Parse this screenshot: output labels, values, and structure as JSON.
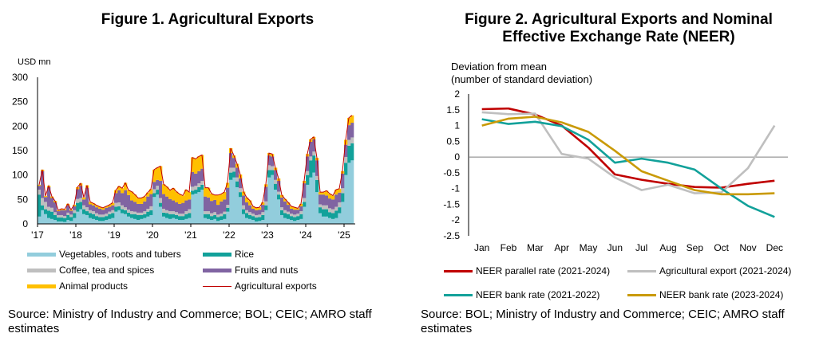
{
  "figure1": {
    "title": "Figure 1. Agricultural Exports",
    "unit_label": "USD mn",
    "source": "Source: Ministry of Industry and Commerce; BOL; CEIC; AMRO staff estimates",
    "legend": [
      {
        "label": "Vegetables, roots and tubers",
        "color": "#92cddc",
        "kind": "area"
      },
      {
        "label": "Rice",
        "color": "#12a19a",
        "kind": "area"
      },
      {
        "label": "Coffee, tea and spices",
        "color": "#bfbfbf",
        "kind": "area"
      },
      {
        "label": "Fruits and nuts",
        "color": "#8064a2",
        "kind": "area"
      },
      {
        "label": "Animal products",
        "color": "#ffc000",
        "kind": "area"
      },
      {
        "label": "Agricultural exports",
        "color": "#c00000",
        "kind": "line"
      }
    ]
  },
  "figure2": {
    "title_line1": "Figure 2. Agricultural Exports and Nominal",
    "title_line2": "Effective Exchange Rate (NEER)",
    "ylabel_line1": "Deviation from mean",
    "ylabel_line2": "(number of standard deviation)",
    "source": "Source: BOL; Ministry of Industry and Commerce; CEIC; AMRO staff estimates"
  },
  "chart_data": [
    {
      "type": "area",
      "stacked": true,
      "title": "Figure 1. Agricultural Exports",
      "ylabel": "USD mn",
      "xlabel": "",
      "ylim": [
        0,
        300
      ],
      "yticks": [
        0,
        50,
        100,
        150,
        200,
        250,
        300
      ],
      "xtick_labels": [
        "'17",
        "'18",
        "'19",
        "'20",
        "'21",
        "'22",
        "'23",
        "'24",
        "'25"
      ],
      "x_start": "2017-01",
      "frequency": "monthly",
      "grid": false,
      "legend_position": "bottom",
      "series": [
        {
          "name": "Vegetables, roots and tubers",
          "color": "#92cddc",
          "values": [
            15,
            28,
            20,
            12,
            10,
            8,
            5,
            5,
            4,
            8,
            6,
            12,
            25,
            30,
            20,
            18,
            12,
            10,
            8,
            6,
            6,
            8,
            10,
            12,
            25,
            28,
            22,
            20,
            15,
            12,
            10,
            8,
            10,
            12,
            15,
            18,
            55,
            60,
            35,
            15,
            12,
            10,
            12,
            10,
            8,
            8,
            10,
            12,
            60,
            62,
            65,
            70,
            12,
            10,
            8,
            10,
            6,
            8,
            10,
            25,
            90,
            95,
            75,
            55,
            20,
            12,
            10,
            8,
            5,
            6,
            8,
            28,
            95,
            100,
            70,
            50,
            18,
            12,
            10,
            8,
            6,
            8,
            10,
            35,
            80,
            95,
            105,
            65,
            22,
            15,
            15,
            12,
            10,
            12,
            22,
            45,
            100,
            125,
            130
          ]
        },
        {
          "name": "Rice",
          "color": "#12a19a",
          "values": [
            45,
            10,
            10,
            15,
            15,
            10,
            8,
            8,
            8,
            10,
            8,
            10,
            18,
            15,
            10,
            8,
            10,
            10,
            8,
            8,
            8,
            8,
            10,
            10,
            10,
            8,
            8,
            8,
            8,
            8,
            10,
            10,
            8,
            8,
            10,
            10,
            8,
            10,
            8,
            8,
            10,
            10,
            8,
            8,
            8,
            8,
            10,
            10,
            8,
            8,
            10,
            10,
            8,
            10,
            8,
            8,
            8,
            8,
            10,
            8,
            15,
            12,
            12,
            10,
            10,
            10,
            8,
            8,
            8,
            8,
            10,
            10,
            15,
            10,
            12,
            10,
            10,
            10,
            10,
            8,
            8,
            8,
            10,
            10,
            20,
            35,
            35,
            25,
            12,
            15,
            15,
            12,
            12,
            15,
            12,
            18,
            25,
            35,
            35
          ]
        },
        {
          "name": "Coffee, tea and spices",
          "color": "#bfbfbf",
          "values": [
            10,
            15,
            15,
            8,
            8,
            6,
            5,
            5,
            4,
            5,
            5,
            6,
            8,
            8,
            8,
            8,
            6,
            6,
            6,
            5,
            5,
            5,
            5,
            6,
            8,
            8,
            8,
            6,
            6,
            6,
            5,
            5,
            5,
            6,
            6,
            8,
            8,
            8,
            10,
            8,
            6,
            6,
            6,
            6,
            5,
            5,
            6,
            8,
            8,
            8,
            8,
            8,
            6,
            6,
            6,
            6,
            5,
            5,
            5,
            6,
            10,
            8,
            8,
            8,
            8,
            6,
            6,
            5,
            5,
            5,
            6,
            8,
            10,
            8,
            8,
            6,
            6,
            6,
            5,
            5,
            5,
            5,
            6,
            8,
            8,
            8,
            8,
            8,
            6,
            8,
            8,
            8,
            8,
            8,
            10,
            10,
            12,
            12,
            12
          ]
        },
        {
          "name": "Fruits and nuts",
          "color": "#8064a2",
          "values": [
            8,
            55,
            10,
            40,
            20,
            20,
            8,
            10,
            12,
            15,
            8,
            8,
            20,
            25,
            12,
            40,
            12,
            12,
            12,
            12,
            10,
            12,
            10,
            10,
            20,
            25,
            25,
            35,
            30,
            22,
            20,
            18,
            18,
            20,
            25,
            25,
            15,
            12,
            35,
            30,
            28,
            25,
            22,
            20,
            20,
            22,
            22,
            20,
            30,
            25,
            25,
            25,
            30,
            28,
            25,
            25,
            20,
            25,
            25,
            35,
            30,
            20,
            20,
            20,
            20,
            16,
            14,
            10,
            10,
            10,
            15,
            30,
            20,
            20,
            20,
            22,
            20,
            18,
            14,
            10,
            10,
            8,
            10,
            30,
            30,
            30,
            25,
            32,
            20,
            22,
            20,
            20,
            20,
            25,
            20,
            30,
            25,
            30,
            30
          ]
        },
        {
          "name": "Animal products",
          "color": "#ffc000",
          "values": [
            2,
            3,
            2,
            3,
            3,
            3,
            2,
            3,
            2,
            3,
            2,
            3,
            4,
            5,
            4,
            5,
            5,
            4,
            4,
            4,
            4,
            3,
            4,
            5,
            6,
            8,
            10,
            15,
            10,
            18,
            15,
            12,
            12,
            10,
            8,
            10,
            25,
            25,
            30,
            20,
            20,
            18,
            25,
            22,
            20,
            15,
            22,
            15,
            30,
            30,
            30,
            28,
            18,
            20,
            15,
            10,
            20,
            15,
            15,
            10,
            10,
            5,
            8,
            8,
            8,
            10,
            10,
            5,
            5,
            5,
            5,
            5,
            5,
            5,
            5,
            5,
            5,
            5,
            5,
            5,
            5,
            3,
            5,
            5,
            5,
            5,
            5,
            5,
            5,
            5,
            10,
            10,
            8,
            10,
            8,
            5,
            10,
            15,
            15
          ]
        }
      ],
      "line": {
        "name": "Agricultural exports",
        "color": "#c00000"
      }
    },
    {
      "type": "line",
      "title": "Figure 2. Agricultural Exports and Nominal Effective Exchange Rate (NEER)",
      "ylabel": "Deviation from mean (number of standard deviation)",
      "xlabel": "",
      "ylim": [
        -2.5,
        2
      ],
      "yticks": [
        -2.5,
        -2,
        -1.5,
        -1,
        -0.5,
        0,
        0.5,
        1,
        1.5,
        2
      ],
      "categories": [
        "Jan",
        "Feb",
        "Mar",
        "Apr",
        "May",
        "Jun",
        "Jul",
        "Aug",
        "Sep",
        "Oct",
        "Nov",
        "Dec"
      ],
      "grid": false,
      "zero_line": true,
      "legend_position": "bottom",
      "series": [
        {
          "name": "NEER parallel rate (2021-2024)",
          "color": "#c00000",
          "values": [
            1.52,
            1.54,
            1.35,
            1.0,
            0.3,
            -0.55,
            -0.72,
            -0.85,
            -0.95,
            -0.97,
            -0.85,
            -0.75
          ]
        },
        {
          "name": "Agricultural export (2021-2024)",
          "color": "#bfbfbf",
          "values": [
            1.42,
            1.36,
            1.38,
            0.1,
            -0.05,
            -0.65,
            -1.05,
            -0.88,
            -1.15,
            -1.12,
            -0.35,
            1.0
          ]
        },
        {
          "name": "NEER bank rate (2021-2022)",
          "color": "#12a19a",
          "values": [
            1.2,
            1.05,
            1.12,
            0.98,
            0.55,
            -0.18,
            -0.05,
            -0.18,
            -0.4,
            -1.0,
            -1.55,
            -1.9
          ]
        },
        {
          "name": "NEER bank rate (2023-2024)",
          "color": "#c99a06",
          "values": [
            1.0,
            1.22,
            1.28,
            1.1,
            0.8,
            0.2,
            -0.45,
            -0.75,
            -1.05,
            -1.18,
            -1.18,
            -1.15
          ]
        }
      ]
    }
  ]
}
